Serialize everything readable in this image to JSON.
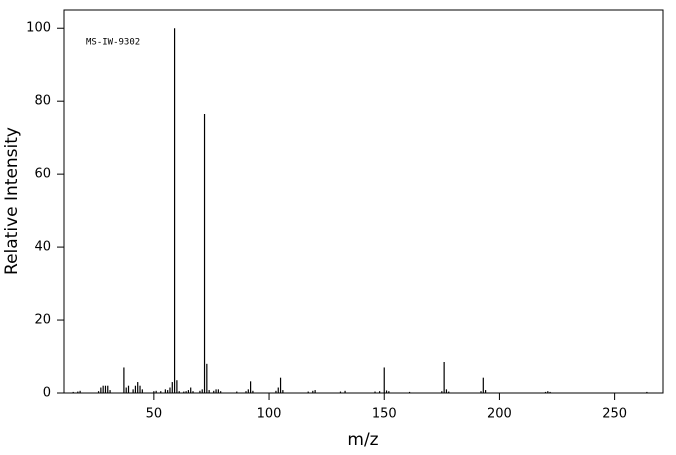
{
  "chart_data": {
    "type": "stem",
    "annotation": "MS-IW-9302",
    "x_label": "m/z",
    "y_label": "Relative Intensity",
    "color": "#000000",
    "x": [
      15,
      17,
      18,
      26,
      27,
      28,
      29,
      30,
      31,
      37,
      38,
      39,
      41,
      42,
      43,
      44,
      45,
      50,
      51,
      53,
      55,
      56,
      57,
      58,
      59,
      60,
      61,
      63,
      64,
      65,
      66,
      67,
      70,
      71,
      72,
      73,
      74,
      76,
      77,
      78,
      79,
      86,
      90,
      91,
      92,
      93,
      103,
      104,
      105,
      106,
      117,
      119,
      120,
      131,
      133,
      146,
      148,
      150,
      151,
      152,
      161,
      175,
      176,
      177,
      178,
      192,
      193,
      194,
      220,
      221,
      222,
      264
    ],
    "values": [
      0.3,
      0.4,
      0.6,
      0.5,
      1.5,
      2,
      2,
      2,
      0.8,
      7,
      1.5,
      2,
      1,
      2,
      3,
      2,
      1,
      0.5,
      0.6,
      0.5,
      1,
      0.8,
      1.5,
      3,
      100,
      3.5,
      0.5,
      0.4,
      0.5,
      0.8,
      1.5,
      0.5,
      0.6,
      1,
      76.5,
      8,
      0.8,
      0.6,
      1,
      1,
      0.5,
      0.4,
      0.5,
      1,
      3.2,
      0.6,
      0.6,
      1.5,
      4.2,
      0.8,
      0.4,
      0.6,
      0.8,
      0.4,
      0.6,
      0.4,
      0.5,
      7,
      0.7,
      0.5,
      0.3,
      0.5,
      8.5,
      1,
      0.4,
      0.5,
      4.2,
      0.8,
      0.3,
      0.5,
      0.3,
      0.3
    ],
    "xlim": [
      11,
      271
    ],
    "ylim": [
      0,
      105
    ],
    "xticks": [
      50,
      100,
      150,
      200,
      250
    ],
    "yticks": [
      0,
      20,
      40,
      60,
      80,
      100
    ]
  }
}
